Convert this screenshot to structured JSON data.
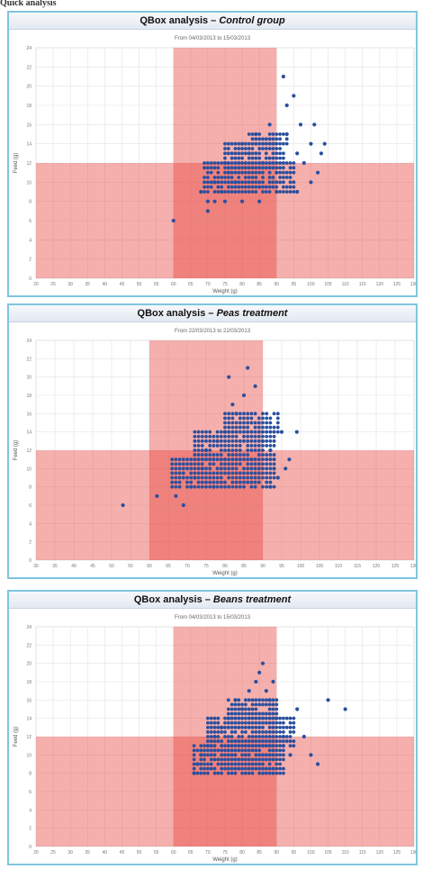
{
  "caption": "Quick analysis",
  "charts": [
    {
      "title_prefix": "QBox analysis – ",
      "title_suffix": "Control group",
      "subtitle": "From 04/03/2013 to 15/03/2013",
      "chart_data": {
        "type": "scatter",
        "xlabel": "Weight (g)",
        "ylabel": "Feed (g)",
        "xlim": [
          20,
          130
        ],
        "ylim": [
          0,
          24
        ],
        "x_ticks": [
          20,
          25,
          30,
          35,
          40,
          45,
          50,
          55,
          60,
          65,
          70,
          75,
          80,
          85,
          90,
          95,
          100,
          105,
          110,
          115,
          120,
          125,
          130
        ],
        "y_ticks": [
          0,
          2,
          4,
          6,
          8,
          10,
          12,
          14,
          16,
          18,
          20,
          22,
          24
        ],
        "grid": true,
        "shaded_regions": {
          "x_band": [
            60,
            90
          ],
          "y_band_below": 12,
          "color": "#e8423c"
        },
        "points": [
          [
            60,
            6
          ],
          [
            68,
            9
          ],
          [
            70,
            7
          ],
          [
            70,
            8
          ],
          [
            72,
            8
          ],
          [
            72,
            10
          ],
          [
            74,
            9
          ],
          [
            75,
            12
          ],
          [
            76,
            11
          ],
          [
            78,
            10
          ],
          [
            80,
            14
          ],
          [
            82,
            13
          ],
          [
            84,
            15
          ],
          [
            86,
            12
          ],
          [
            88,
            16
          ],
          [
            90,
            11
          ],
          [
            92,
            21
          ],
          [
            93,
            18
          ],
          [
            93,
            15
          ],
          [
            95,
            19
          ],
          [
            96,
            13
          ],
          [
            97,
            16
          ],
          [
            98,
            12
          ],
          [
            100,
            14
          ],
          [
            101,
            16
          ],
          [
            103,
            13
          ],
          [
            104,
            14
          ],
          [
            102,
            11
          ],
          [
            100,
            10
          ],
          [
            96,
            9
          ],
          [
            90,
            9
          ],
          [
            85,
            8
          ],
          [
            80,
            8
          ],
          [
            75,
            8
          ]
        ],
        "clusters": [
          {
            "x": [
              69,
              95
            ],
            "y": [
              9,
              12
            ]
          },
          {
            "x": [
              75,
              92
            ],
            "y": [
              12,
              14
            ]
          },
          {
            "x": [
              82,
              93
            ],
            "y": [
              14,
              15
            ]
          }
        ]
      }
    },
    {
      "title_prefix": "QBox analysis – ",
      "title_suffix": "Peas treatment",
      "subtitle": "From 22/03/2013 to 22/03/2013",
      "chart_data": {
        "type": "scatter",
        "xlabel": "Weight (g)",
        "ylabel": "Feed (g)",
        "xlim": [
          30,
          130
        ],
        "ylim": [
          0,
          24
        ],
        "x_ticks": [
          30,
          35,
          40,
          45,
          50,
          55,
          60,
          65,
          70,
          75,
          80,
          85,
          90,
          95,
          100,
          105,
          110,
          115,
          120,
          125,
          130
        ],
        "y_ticks": [
          0,
          2,
          4,
          6,
          8,
          10,
          12,
          14,
          16,
          18,
          20,
          22,
          24
        ],
        "grid": true,
        "shaded_regions": {
          "x_band": [
            60,
            90
          ],
          "y_band_below": 12,
          "color": "#e8423c"
        },
        "points": [
          [
            53,
            6
          ],
          [
            62,
            7
          ],
          [
            67,
            7
          ],
          [
            69,
            6
          ],
          [
            71,
            8
          ],
          [
            72,
            9
          ],
          [
            74,
            10
          ],
          [
            75,
            12
          ],
          [
            77,
            8
          ],
          [
            78,
            13
          ],
          [
            80,
            14
          ],
          [
            81,
            20
          ],
          [
            82,
            17
          ],
          [
            83,
            16
          ],
          [
            85,
            18
          ],
          [
            86,
            21
          ],
          [
            88,
            19
          ],
          [
            90,
            13
          ],
          [
            92,
            12
          ],
          [
            93,
            10
          ],
          [
            94,
            9
          ],
          [
            96,
            10
          ],
          [
            95,
            14
          ],
          [
            97,
            11
          ],
          [
            99,
            14
          ],
          [
            92,
            8
          ]
        ],
        "clusters": [
          {
            "x": [
              66,
              93
            ],
            "y": [
              8,
              11
            ]
          },
          {
            "x": [
              72,
              93
            ],
            "y": [
              11,
              14
            ]
          },
          {
            "x": [
              80,
              94
            ],
            "y": [
              14,
              16
            ]
          }
        ]
      }
    },
    {
      "title_prefix": "QBox analysis – ",
      "title_suffix": "Beans treatment",
      "subtitle": "From 04/03/2013 to 15/03/2013",
      "chart_data": {
        "type": "scatter",
        "xlabel": "Weight (g)",
        "ylabel": "Feed (g)",
        "xlim": [
          20,
          130
        ],
        "ylim": [
          0,
          24
        ],
        "x_ticks": [
          20,
          25,
          30,
          35,
          40,
          45,
          50,
          55,
          60,
          65,
          70,
          75,
          80,
          85,
          90,
          95,
          100,
          105,
          110,
          115,
          120,
          125,
          130
        ],
        "y_ticks": [
          0,
          2,
          4,
          6,
          8,
          10,
          12,
          14,
          16,
          18,
          20,
          22,
          24
        ],
        "grid": true,
        "shaded_regions": {
          "x_band": [
            60,
            90
          ],
          "y_band_below": 12,
          "color": "#e8423c"
        },
        "points": [
          [
            66,
            8
          ],
          [
            67,
            9
          ],
          [
            68,
            10
          ],
          [
            70,
            11
          ],
          [
            72,
            12
          ],
          [
            74,
            13
          ],
          [
            76,
            14
          ],
          [
            78,
            16
          ],
          [
            80,
            15
          ],
          [
            82,
            17
          ],
          [
            84,
            18
          ],
          [
            85,
            19
          ],
          [
            86,
            20
          ],
          [
            87,
            17
          ],
          [
            88,
            16
          ],
          [
            90,
            14
          ],
          [
            92,
            12
          ],
          [
            94,
            10
          ],
          [
            96,
            15
          ],
          [
            98,
            12
          ],
          [
            100,
            10
          ],
          [
            102,
            9
          ],
          [
            105,
            16
          ],
          [
            110,
            15
          ],
          [
            89,
            18
          ],
          [
            92,
            11
          ]
        ],
        "clusters": [
          {
            "x": [
              66,
              92
            ],
            "y": [
              8,
              11
            ]
          },
          {
            "x": [
              70,
              95
            ],
            "y": [
              11,
              14
            ]
          },
          {
            "x": [
              76,
              90
            ],
            "y": [
              14,
              16
            ]
          }
        ]
      }
    }
  ]
}
